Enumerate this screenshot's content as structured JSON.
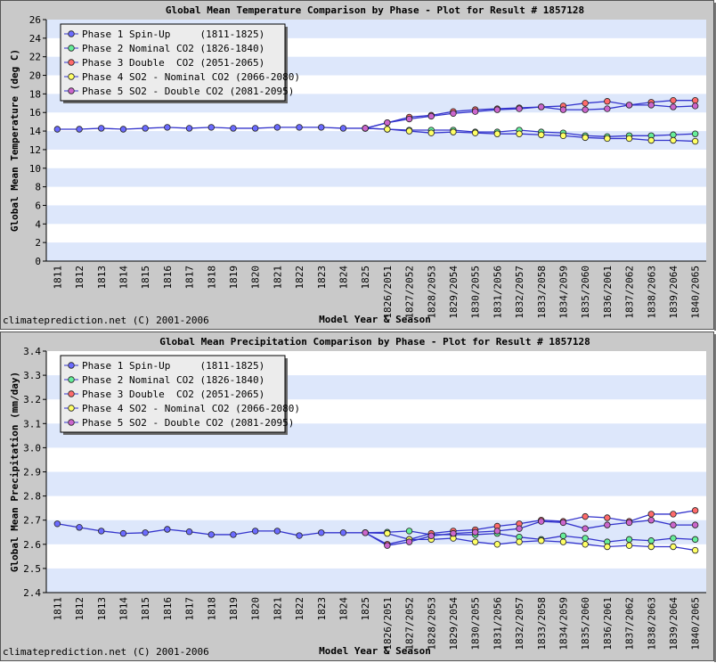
{
  "chart_data": [
    {
      "type": "line",
      "title": "Global Mean Temperature Comparison by Phase - Plot for Result # 1857128",
      "xlabel": "Model Year & Season",
      "ylabel": "Global Mean Temperature (deg C)",
      "credit": "climateprediction.net (C) 2001-2006",
      "categories": [
        "1811",
        "1812",
        "1813",
        "1814",
        "1815",
        "1816",
        "1817",
        "1818",
        "1819",
        "1820",
        "1821",
        "1822",
        "1823",
        "1824",
        "1825",
        "1826/2051",
        "1827/2052",
        "1828/2053",
        "1829/2054",
        "1830/2055",
        "1831/2056",
        "1832/2057",
        "1833/2058",
        "1834/2059",
        "1835/2060",
        "1836/2061",
        "1837/2062",
        "1838/2063",
        "1839/2064",
        "1840/2065"
      ],
      "ylim": [
        0,
        26
      ],
      "yticks": [
        0,
        2,
        4,
        6,
        8,
        10,
        12,
        14,
        16,
        18,
        20,
        22,
        24,
        26
      ],
      "grid": true,
      "legend": "upper left",
      "line_color": "#3333cc",
      "series": [
        {
          "name": "Phase 1 Spin-Up     (1811-1825)",
          "color": "#6b6bff",
          "values": [
            14.2,
            14.2,
            14.3,
            14.2,
            14.3,
            14.4,
            14.3,
            14.4,
            14.3,
            14.3,
            14.4,
            14.4,
            14.4,
            14.3,
            14.3,
            null,
            null,
            null,
            null,
            null,
            null,
            null,
            null,
            null,
            null,
            null,
            null,
            null,
            null,
            null
          ]
        },
        {
          "name": "Phase 2 Nominal CO2 (1826-1840)",
          "color": "#66ee99",
          "values": [
            null,
            null,
            null,
            null,
            null,
            null,
            null,
            null,
            null,
            null,
            null,
            null,
            null,
            null,
            14.3,
            14.2,
            14.1,
            14.1,
            14.1,
            13.9,
            13.9,
            14.1,
            13.9,
            13.8,
            13.5,
            13.4,
            13.5,
            13.5,
            13.6,
            13.7
          ]
        },
        {
          "name": "Phase 3 Double  CO2 (2051-2065)",
          "color": "#ff6b6b",
          "values": [
            null,
            null,
            null,
            null,
            null,
            null,
            null,
            null,
            null,
            null,
            null,
            null,
            null,
            null,
            14.3,
            14.9,
            15.5,
            15.7,
            16.1,
            16.3,
            16.4,
            16.5,
            16.6,
            16.7,
            17.0,
            17.2,
            16.8,
            17.1,
            17.3,
            17.3
          ]
        },
        {
          "name": "Phase 4 SO2 - Nominal CO2 (2066-2080)",
          "color": "#ffff66",
          "values": [
            null,
            null,
            null,
            null,
            null,
            null,
            null,
            null,
            null,
            null,
            null,
            null,
            null,
            null,
            14.3,
            14.2,
            14.0,
            13.8,
            13.9,
            13.8,
            13.7,
            13.7,
            13.6,
            13.5,
            13.3,
            13.2,
            13.2,
            13.0,
            13.0,
            12.9
          ]
        },
        {
          "name": "Phase 5 SO2 - Double CO2 (2081-2095)",
          "color": "#cc66cc",
          "values": [
            null,
            null,
            null,
            null,
            null,
            null,
            null,
            null,
            null,
            null,
            null,
            null,
            null,
            null,
            14.3,
            14.9,
            15.3,
            15.6,
            15.9,
            16.1,
            16.3,
            16.4,
            16.6,
            16.3,
            16.3,
            16.4,
            16.8,
            16.8,
            16.6,
            16.7
          ]
        }
      ]
    },
    {
      "type": "line",
      "title": "Global Mean Precipitation Comparison by Phase - Plot for Result # 1857128",
      "xlabel": "Model Year & Season",
      "ylabel": "Global Mean Precipitation (mm/day)",
      "credit": "climateprediction.net (C) 2001-2006",
      "categories": [
        "1811",
        "1812",
        "1813",
        "1814",
        "1815",
        "1816",
        "1817",
        "1818",
        "1819",
        "1820",
        "1821",
        "1822",
        "1823",
        "1824",
        "1825",
        "1826/2051",
        "1827/2052",
        "1828/2053",
        "1829/2054",
        "1830/2055",
        "1831/2056",
        "1832/2057",
        "1833/2058",
        "1834/2059",
        "1835/2060",
        "1836/2061",
        "1837/2062",
        "1838/2063",
        "1839/2064",
        "1840/2065"
      ],
      "ylim": [
        2.4,
        3.4
      ],
      "yticks": [
        2.4,
        2.5,
        2.6,
        2.7,
        2.8,
        2.9,
        {
          "value": 3,
          "label": "3.0"
        },
        3.1,
        3.2,
        3.3,
        3.4
      ],
      "grid": true,
      "legend": "upper left",
      "line_color": "#3333cc",
      "series": [
        {
          "name": "Phase 1 Spin-Up     (1811-1825)",
          "color": "#6b6bff",
          "values": [
            2.685,
            2.67,
            2.655,
            2.645,
            2.648,
            2.662,
            2.652,
            2.64,
            2.64,
            2.655,
            2.655,
            2.636,
            2.648,
            2.648,
            2.648,
            null,
            null,
            null,
            null,
            null,
            null,
            null,
            null,
            null,
            null,
            null,
            null,
            null,
            null,
            null
          ]
        },
        {
          "name": "Phase 2 Nominal CO2 (1826-1840)",
          "color": "#66ee99",
          "values": [
            null,
            null,
            null,
            null,
            null,
            null,
            null,
            null,
            null,
            null,
            null,
            null,
            null,
            null,
            2.648,
            2.65,
            2.655,
            2.64,
            2.64,
            2.64,
            2.645,
            2.63,
            2.62,
            2.635,
            2.625,
            2.61,
            2.62,
            2.615,
            2.625,
            2.62
          ]
        },
        {
          "name": "Phase 3 Double  CO2 (2051-2065)",
          "color": "#ff6b6b",
          "values": [
            null,
            null,
            null,
            null,
            null,
            null,
            null,
            null,
            null,
            null,
            null,
            null,
            null,
            null,
            2.648,
            2.6,
            2.62,
            2.645,
            2.655,
            2.66,
            2.675,
            2.685,
            2.7,
            2.695,
            2.715,
            2.71,
            2.695,
            2.725,
            2.725,
            2.74
          ]
        },
        {
          "name": "Phase 4 SO2 - Nominal CO2 (2066-2080)",
          "color": "#ffff66",
          "values": [
            null,
            null,
            null,
            null,
            null,
            null,
            null,
            null,
            null,
            null,
            null,
            null,
            null,
            null,
            2.648,
            2.645,
            2.62,
            2.62,
            2.625,
            2.61,
            2.6,
            2.61,
            2.615,
            2.61,
            2.6,
            2.59,
            2.595,
            2.59,
            2.59,
            2.575
          ]
        },
        {
          "name": "Phase 5 SO2 - Double CO2 (2081-2095)",
          "color": "#cc66cc",
          "values": [
            null,
            null,
            null,
            null,
            null,
            null,
            null,
            null,
            null,
            null,
            null,
            null,
            null,
            null,
            2.648,
            2.595,
            2.61,
            2.635,
            2.645,
            2.65,
            2.655,
            2.665,
            2.695,
            2.69,
            2.665,
            2.68,
            2.69,
            2.7,
            2.68,
            2.68
          ]
        }
      ]
    }
  ]
}
